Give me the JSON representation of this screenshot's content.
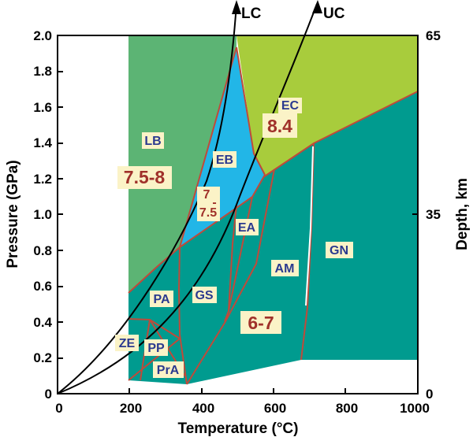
{
  "axes": {
    "x_title": "Temperature (°C)",
    "y_left_title": "Pressure (GPa)",
    "y_right_title": "Depth, km",
    "x_ticks": [
      "0",
      "200",
      "400",
      "600",
      "800",
      "1000"
    ],
    "y_left_ticks": [
      "0",
      "0.2",
      "0.4",
      "0.6",
      "0.8",
      "1.0",
      "1.2",
      "1.4",
      "1.6",
      "1.8",
      "2.0"
    ],
    "y_right_ticks": [
      "0",
      "35",
      "65"
    ]
  },
  "curves": {
    "lc": "LC",
    "uc": "UC"
  },
  "facies": {
    "lb": "LB",
    "eb": "EB",
    "ec": "EC",
    "ea": "EA",
    "am": "AM",
    "gn": "GN",
    "gs": "GS",
    "pa": "PA",
    "pp": "PP",
    "pra": "PrA",
    "ze": "ZE"
  },
  "values": {
    "lb": "7.5-8",
    "ec": "8.4",
    "eb_top": "7",
    "eb_mid": "-",
    "eb_bottom": "7.5",
    "lowgrade": "6-7"
  },
  "colors": {
    "lb_green": "#5cb474",
    "eb_blue": "#22b6e7",
    "ec_yellowgreen": "#a8cc3c",
    "teal": "#009b8f",
    "boundary_red": "#c04a3a"
  }
}
